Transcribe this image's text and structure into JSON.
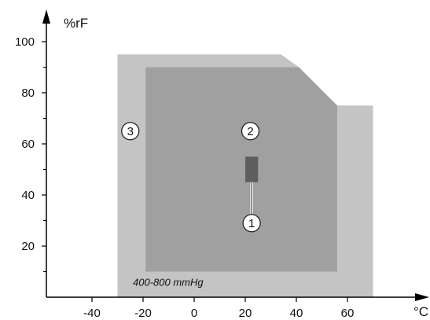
{
  "chart_data": {
    "type": "area",
    "title": "",
    "xlabel": "°C",
    "ylabel": "%rF",
    "xlim": [
      -55,
      82
    ],
    "ylim": [
      0,
      105
    ],
    "x_ticks": [
      -40,
      -20,
      0,
      20,
      40,
      60
    ],
    "x_tick_labels": [
      "-40",
      "-20",
      "0",
      "20",
      "40",
      "60"
    ],
    "y_ticks": [
      20,
      40,
      60,
      80,
      100
    ],
    "y_tick_labels": [
      "20",
      "40",
      "60",
      "80",
      "100"
    ],
    "y_minor_ticks": [
      10,
      30,
      50,
      70,
      90
    ],
    "regions": [
      {
        "label": "3",
        "color": "#c4c4c4",
        "polygon": [
          [
            -30,
            0
          ],
          [
            -30,
            95
          ],
          [
            34,
            95
          ],
          [
            41,
            90
          ],
          [
            56,
            75
          ],
          [
            70,
            75
          ],
          [
            70,
            0
          ]
        ],
        "label_at": [
          -25,
          65
        ]
      },
      {
        "label": "2",
        "color": "#a0a0a0",
        "polygon": [
          [
            -19,
            10
          ],
          [
            -19,
            90
          ],
          [
            41,
            90
          ],
          [
            56,
            75
          ],
          [
            56,
            10
          ]
        ],
        "label_at": [
          22,
          65
        ]
      },
      {
        "label": "1",
        "color": "#5e5e5e",
        "polygon": [
          [
            20,
            45
          ],
          [
            20,
            55
          ],
          [
            25,
            55
          ],
          [
            25,
            45
          ]
        ],
        "label_at": [
          22.5,
          29
        ],
        "leader_from": [
          22.5,
          45
        ]
      }
    ],
    "annotations": [
      {
        "text": "400-800 mmHg",
        "x": -24,
        "y": 4.5
      }
    ]
  }
}
